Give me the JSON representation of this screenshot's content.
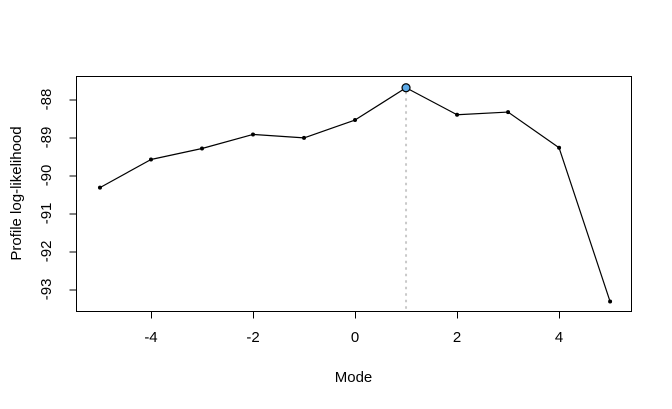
{
  "chart_data": {
    "type": "line",
    "title": "",
    "xlabel": "Mode",
    "ylabel": "Profile log-likelihood",
    "x": [
      -5,
      -4,
      -3,
      -2,
      -1,
      0,
      1,
      2,
      3,
      4,
      5
    ],
    "y": [
      -90.32,
      -89.58,
      -89.29,
      -88.92,
      -89.01,
      -88.54,
      -87.69,
      -88.4,
      -88.33,
      -89.27,
      -93.32
    ],
    "xticks": [
      -4,
      -2,
      0,
      2,
      4
    ],
    "yticks": [
      -88,
      -89,
      -90,
      -91,
      -92,
      -93
    ],
    "xtick_labels": [
      "-4",
      "-2",
      "0",
      "2",
      "4"
    ],
    "ytick_labels": [
      "-88",
      "-89",
      "-90",
      "-91",
      "-92",
      "-93"
    ],
    "xlim": [
      -5.47,
      5.41
    ],
    "ylim": [
      -93.57,
      -87.38
    ],
    "grid": false,
    "legend_position": "none",
    "line_color": "#000000",
    "point_color": "#000000",
    "frame_color": "#000000",
    "background_color": "#ffffff",
    "highlight_point": {
      "x": 1,
      "y": -87.69,
      "marker": "filled-circle",
      "fill": "#5ca9e6",
      "stroke": "#000000"
    },
    "vline": {
      "x": 1,
      "to_y": -87.69,
      "style": "dotted",
      "color": "#c9c9c9"
    }
  }
}
